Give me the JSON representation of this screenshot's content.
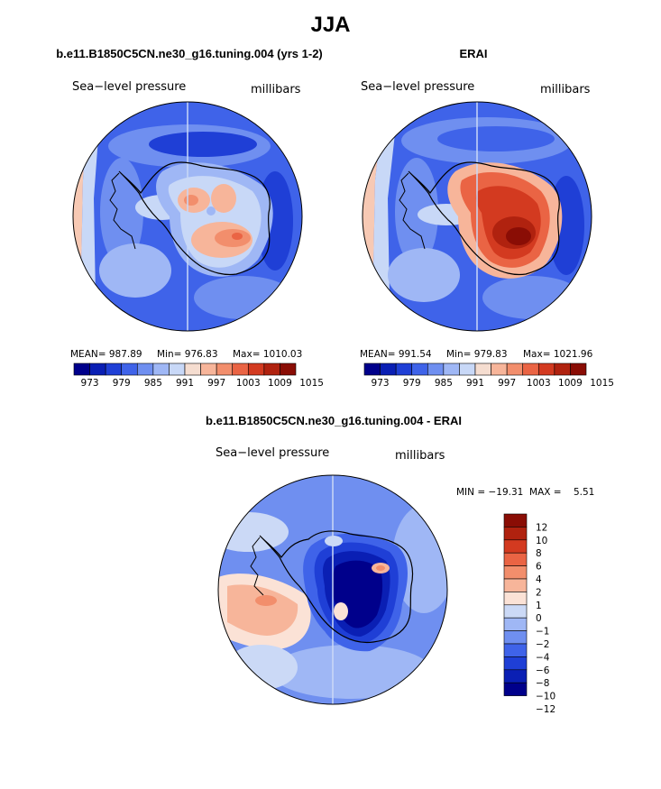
{
  "figure": {
    "title": "JJA"
  },
  "panels": {
    "model": {
      "title": "b.e11.B1850C5CN.ne30_g16.tuning.004 (yrs 1-2)",
      "variable": "Sea−level pressure",
      "units": "millibars",
      "mean_label": "MEAN= 987.89",
      "min_label": "Min= 976.83",
      "max_label": "Max= 1010.03"
    },
    "obs": {
      "title": "ERAI",
      "variable": "Sea−level pressure",
      "units": "millibars",
      "mean_label": "MEAN= 991.54",
      "min_label": "Min= 979.83",
      "max_label": "Max= 1021.96"
    },
    "diff": {
      "title": "b.e11.B1850C5CN.ne30_g16.tuning.004 - ERAI",
      "variable": "Sea−level pressure",
      "units": "millibars",
      "minmax_label": "MIN = −19.31  MAX =    5.51"
    }
  },
  "colors": {
    "slp_scale": [
      "#00008b",
      "#0a1fb4",
      "#1f3fd6",
      "#3f63e9",
      "#6f8ff0",
      "#9fb7f5",
      "#c8d8f7",
      "#f5ddd0",
      "#f7b59a",
      "#f28e6c",
      "#ea6444",
      "#d33a20",
      "#b0220f",
      "#8a0d05"
    ],
    "diff_scale": [
      "#00008b",
      "#0a1fb4",
      "#1f3fd6",
      "#3f63e9",
      "#6f8ff0",
      "#9fb7f5",
      "#cbd9f6",
      "#fbe2d6",
      "#f7b59a",
      "#f28e6c",
      "#ea6444",
      "#d33a20",
      "#b0220f",
      "#8a0d05"
    ]
  },
  "chart_data": [
    {
      "type": "heatmap",
      "title": "b.e11.B1850C5CN.ne30_g16.tuning.004 (yrs 1-2)",
      "variable": "Sea-level pressure",
      "units": "millibars",
      "projection": "south polar stereographic",
      "mean": 987.89,
      "min": 976.83,
      "max": 1010.03,
      "colorbar_ticks": [
        "973",
        "979",
        "985",
        "991",
        "997",
        "1003",
        "1009",
        "1015"
      ],
      "colorbar_levels": [
        973,
        976,
        979,
        982,
        985,
        988,
        991,
        994,
        997,
        1000,
        1003,
        1006,
        1009,
        1012,
        1015
      ]
    },
    {
      "type": "heatmap",
      "title": "ERAI",
      "variable": "Sea-level pressure",
      "units": "millibars",
      "projection": "south polar stereographic",
      "mean": 991.54,
      "min": 979.83,
      "max": 1021.96,
      "colorbar_ticks": [
        "973",
        "979",
        "985",
        "991",
        "997",
        "1003",
        "1009",
        "1015"
      ],
      "colorbar_levels": [
        973,
        976,
        979,
        982,
        985,
        988,
        991,
        994,
        997,
        1000,
        1003,
        1006,
        1009,
        1012,
        1015
      ]
    },
    {
      "type": "heatmap",
      "title": "b.e11.B1850C5CN.ne30_g16.tuning.004 - ERAI",
      "variable": "Sea-level pressure",
      "units": "millibars",
      "projection": "south polar stereographic",
      "min": -19.31,
      "max": 5.51,
      "colorbar_ticks": [
        "12",
        "10",
        "8",
        "6",
        "4",
        "2",
        "1",
        "0",
        "−1",
        "−2",
        "−4",
        "−6",
        "−8",
        "−10",
        "−12"
      ],
      "colorbar_levels": [
        12,
        10,
        8,
        6,
        4,
        2,
        1,
        0,
        -1,
        -2,
        -4,
        -6,
        -8,
        -10,
        -12
      ]
    }
  ]
}
